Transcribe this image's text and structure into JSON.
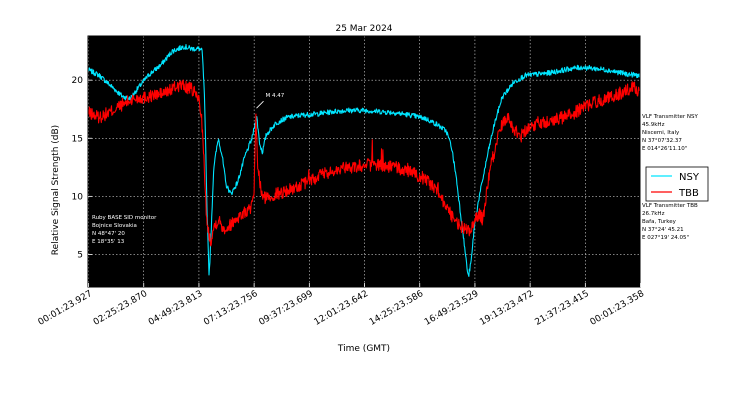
{
  "chart_data": {
    "type": "line",
    "title": "25 Mar 2024",
    "xlabel": "Time (GMT)",
    "ylabel": "Relative Signal Strength (dB)",
    "ylim": [
      2.2,
      23.8
    ],
    "xlim": [
      0,
      1440
    ],
    "yticks": [
      5,
      10,
      15,
      20
    ],
    "xticks": [
      {
        "label": "00:01:23.927",
        "t": 1.4
      },
      {
        "label": "02:25:23.870",
        "t": 145.4
      },
      {
        "label": "04:49:23.813",
        "t": 289.4
      },
      {
        "label": "07:13:23.756",
        "t": 433.4
      },
      {
        "label": "09:37:23.699",
        "t": 577.4
      },
      {
        "label": "12:01:23.642",
        "t": 721.4
      },
      {
        "label": "14:25:23.586",
        "t": 865.4
      },
      {
        "label": "16:49:23.529",
        "t": 1009.4
      },
      {
        "label": "19:13:23.472",
        "t": 1153.4
      },
      {
        "label": "21:37:23.415",
        "t": 1297.4
      },
      {
        "label": "00:01:23.358",
        "t": 1441.4
      }
    ],
    "grid": true,
    "background": "#000000",
    "legend_position": "right-outside",
    "series": [
      {
        "name": "NSY",
        "color": "#00e5ff",
        "points": [
          [
            0,
            20.9
          ],
          [
            30,
            20.4
          ],
          [
            60,
            19.5
          ],
          [
            90,
            18.6
          ],
          [
            110,
            18.4
          ],
          [
            130,
            19.3
          ],
          [
            160,
            20.5
          ],
          [
            190,
            21.3
          ],
          [
            220,
            22.5
          ],
          [
            250,
            22.9
          ],
          [
            270,
            22.7
          ],
          [
            290,
            22.7
          ],
          [
            298,
            22.5
          ],
          [
            304,
            18.5
          ],
          [
            310,
            9.5
          ],
          [
            316,
            3.0
          ],
          [
            320,
            6.0
          ],
          [
            328,
            12.5
          ],
          [
            340,
            15.0
          ],
          [
            350,
            13.5
          ],
          [
            360,
            11.0
          ],
          [
            373,
            10.2
          ],
          [
            390,
            11.2
          ],
          [
            410,
            13.5
          ],
          [
            428,
            15.0
          ],
          [
            440,
            16.9
          ],
          [
            448,
            14.5
          ],
          [
            455,
            13.8
          ],
          [
            465,
            15.3
          ],
          [
            490,
            16.3
          ],
          [
            520,
            16.8
          ],
          [
            560,
            17.0
          ],
          [
            600,
            17.1
          ],
          [
            640,
            17.3
          ],
          [
            680,
            17.4
          ],
          [
            720,
            17.4
          ],
          [
            760,
            17.3
          ],
          [
            800,
            17.2
          ],
          [
            840,
            17.0
          ],
          [
            880,
            16.7
          ],
          [
            910,
            16.2
          ],
          [
            935,
            15.6
          ],
          [
            948,
            14.3
          ],
          [
            960,
            11.8
          ],
          [
            972,
            8.5
          ],
          [
            984,
            5.2
          ],
          [
            992,
            3.0
          ],
          [
            1000,
            4.5
          ],
          [
            1008,
            7.5
          ],
          [
            1018,
            9.5
          ],
          [
            1030,
            11.5
          ],
          [
            1045,
            14.0
          ],
          [
            1060,
            16.2
          ],
          [
            1080,
            18.5
          ],
          [
            1110,
            19.8
          ],
          [
            1140,
            20.4
          ],
          [
            1170,
            20.5
          ],
          [
            1200,
            20.6
          ],
          [
            1230,
            20.8
          ],
          [
            1260,
            21.0
          ],
          [
            1290,
            21.1
          ],
          [
            1320,
            21.0
          ],
          [
            1350,
            20.9
          ],
          [
            1380,
            20.7
          ],
          [
            1410,
            20.5
          ],
          [
            1440,
            20.4
          ]
        ]
      },
      {
        "name": "TBB",
        "color": "#ff0000",
        "points": [
          [
            0,
            17.2
          ],
          [
            30,
            16.8
          ],
          [
            60,
            17.3
          ],
          [
            90,
            17.9
          ],
          [
            120,
            18.4
          ],
          [
            160,
            18.6
          ],
          [
            200,
            18.9
          ],
          [
            240,
            19.6
          ],
          [
            270,
            19.2
          ],
          [
            288,
            18.5
          ],
          [
            296,
            17.0
          ],
          [
            302,
            13.5
          ],
          [
            306,
            10.0
          ],
          [
            312,
            7.2
          ],
          [
            320,
            6.2
          ],
          [
            330,
            7.5
          ],
          [
            340,
            8.0
          ],
          [
            355,
            7.2
          ],
          [
            370,
            7.5
          ],
          [
            390,
            8.2
          ],
          [
            410,
            8.6
          ],
          [
            425,
            9.0
          ],
          [
            433,
            9.8
          ],
          [
            438,
            17.0
          ],
          [
            442,
            13.0
          ],
          [
            448,
            11.2
          ],
          [
            455,
            9.9
          ],
          [
            470,
            9.9
          ],
          [
            490,
            10.2
          ],
          [
            520,
            10.5
          ],
          [
            560,
            11.0
          ],
          [
            600,
            11.7
          ],
          [
            640,
            12.2
          ],
          [
            680,
            12.5
          ],
          [
            720,
            12.7
          ],
          [
            760,
            12.7
          ],
          [
            800,
            12.5
          ],
          [
            840,
            12.1
          ],
          [
            880,
            11.5
          ],
          [
            910,
            10.6
          ],
          [
            940,
            8.8
          ],
          [
            960,
            7.8
          ],
          [
            980,
            7.2
          ],
          [
            995,
            7.0
          ],
          [
            1008,
            7.8
          ],
          [
            1020,
            8.5
          ],
          [
            1030,
            8.0
          ],
          [
            1040,
            10.5
          ],
          [
            1050,
            12.5
          ],
          [
            1065,
            14.5
          ],
          [
            1080,
            16.2
          ],
          [
            1095,
            17.0
          ],
          [
            1110,
            15.8
          ],
          [
            1130,
            15.2
          ],
          [
            1150,
            16.0
          ],
          [
            1180,
            16.4
          ],
          [
            1210,
            16.5
          ],
          [
            1240,
            16.8
          ],
          [
            1270,
            17.2
          ],
          [
            1300,
            17.8
          ],
          [
            1330,
            18.2
          ],
          [
            1360,
            18.5
          ],
          [
            1390,
            18.9
          ],
          [
            1410,
            19.2
          ],
          [
            1425,
            19.6
          ],
          [
            1440,
            18.7
          ]
        ]
      }
    ],
    "annotations": [
      {
        "text": "M 4.47",
        "x": 437,
        "y": 16.9
      }
    ],
    "station_text": [
      "Ruby BASE SID monitor",
      "Bojnice Slovakia",
      "N 48°47' 20",
      "E 18°35' 13"
    ],
    "transmitter_nsy_text": [
      "VLF Transmitter NSY",
      "45.9kHz",
      "Niscemi, Italy",
      "N 37°07'32.37",
      "E 014°26'11.10\""
    ],
    "transmitter_tbb_text": [
      "VLF Transmitter TBB",
      "26.7kHz",
      "Bafa, Turkey",
      "N 37°24' 45.21",
      "E 027°19' 24.05\""
    ]
  }
}
